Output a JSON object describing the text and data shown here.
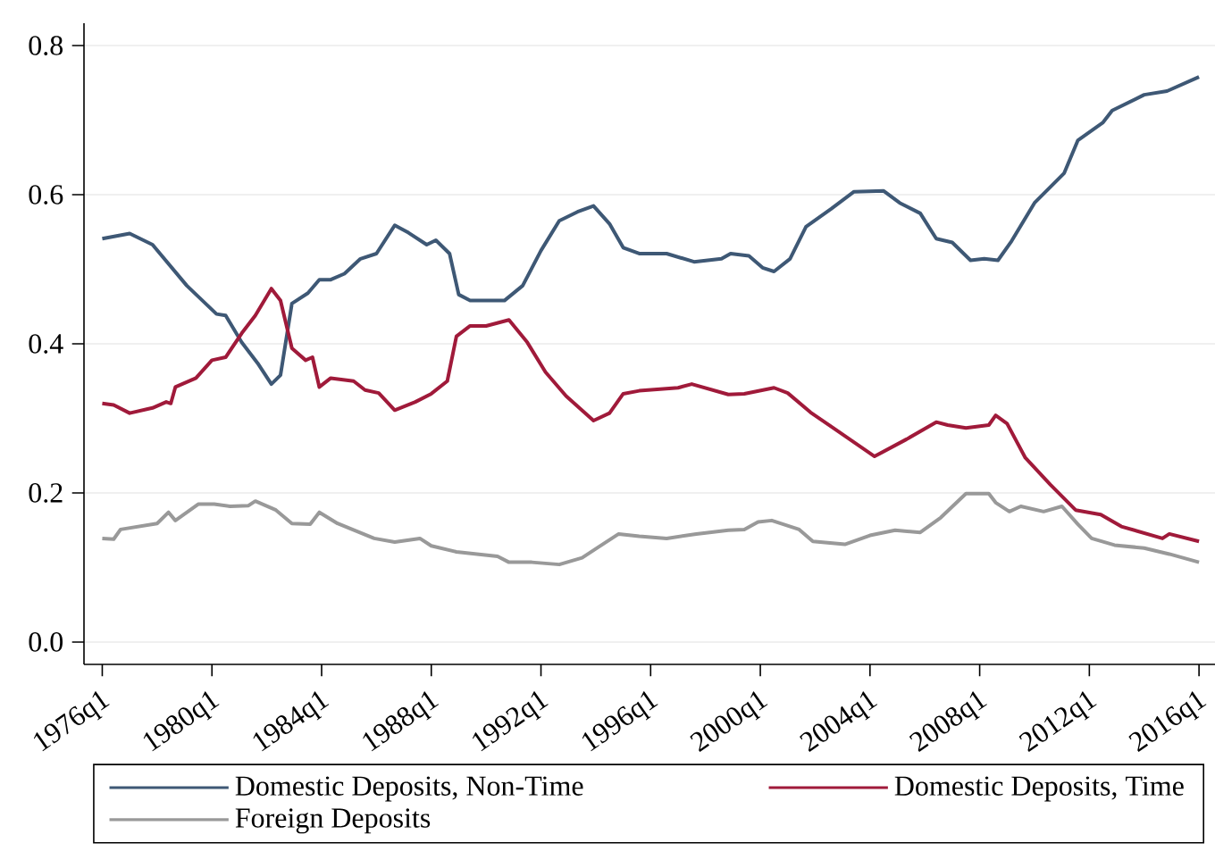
{
  "chart_data": {
    "type": "line",
    "xlim": [
      "1975-05",
      "2016-08"
    ],
    "ylim": [
      -0.03,
      0.83
    ],
    "xticks": [
      {
        "value": "1976-01",
        "label": "1976q1"
      },
      {
        "value": "1980-01",
        "label": "1980q1"
      },
      {
        "value": "1984-01",
        "label": "1984q1"
      },
      {
        "value": "1988-01",
        "label": "1988q1"
      },
      {
        "value": "1992-01",
        "label": "1992q1"
      },
      {
        "value": "1996-01",
        "label": "1996q1"
      },
      {
        "value": "2000-01",
        "label": "2000q1"
      },
      {
        "value": "2004-01",
        "label": "2004q1"
      },
      {
        "value": "2008-01",
        "label": "2008q1"
      },
      {
        "value": "2012-01",
        "label": "2012q1"
      },
      {
        "value": "2016-01",
        "label": "2016q1"
      }
    ],
    "yticks": [
      {
        "value": 0,
        "label": "0.0"
      },
      {
        "value": 0.2,
        "label": "0.2"
      },
      {
        "value": 0.4,
        "label": "0.4"
      },
      {
        "value": 0.6,
        "label": "0.6"
      },
      {
        "value": 0.8,
        "label": "0.8"
      }
    ],
    "grid": "y",
    "legend": "bottom",
    "marker": "none",
    "line_style": "solid",
    "series": [
      {
        "name": "Domestic Deposits, Non-Time",
        "color": "#3e5875",
        "x": [
          "1976-01",
          "1977-01",
          "1977-11",
          "1979-02",
          "1980-03",
          "1980-07",
          "1981-02",
          "1981-09",
          "1982-03",
          "1982-07",
          "1982-12",
          "1983-07",
          "1983-12",
          "1984-05",
          "1984-11",
          "1985-06",
          "1986-01",
          "1986-09",
          "1987-03",
          "1987-11",
          "1988-03",
          "1988-09",
          "1989-01",
          "1989-06",
          "1990-01",
          "1990-09",
          "1991-05",
          "1992-01",
          "1992-09",
          "1993-05",
          "1993-12",
          "1994-07",
          "1995-01",
          "1995-08",
          "1996-08",
          "1997-08",
          "1998-08",
          "1998-12",
          "1999-08",
          "2000-02",
          "2000-07",
          "2001-02",
          "2001-09",
          "2002-08",
          "2003-06",
          "2004-07",
          "2005-02",
          "2005-11",
          "2006-06",
          "2007-01",
          "2007-09",
          "2008-03",
          "2008-09",
          "2009-03",
          "2010-01",
          "2011-02",
          "2011-08",
          "2012-07",
          "2012-11",
          "2014-01",
          "2014-11",
          "2016-01"
        ],
        "values": [
          0.541,
          0.548,
          0.533,
          0.478,
          0.44,
          0.438,
          0.402,
          0.374,
          0.346,
          0.358,
          0.454,
          0.468,
          0.486,
          0.486,
          0.494,
          0.514,
          0.521,
          0.559,
          0.549,
          0.533,
          0.539,
          0.521,
          0.466,
          0.458,
          0.458,
          0.458,
          0.478,
          0.525,
          0.565,
          0.577,
          0.585,
          0.561,
          0.529,
          0.521,
          0.521,
          0.51,
          0.514,
          0.521,
          0.518,
          0.502,
          0.497,
          0.514,
          0.557,
          0.581,
          0.604,
          0.605,
          0.589,
          0.575,
          0.541,
          0.536,
          0.512,
          0.514,
          0.512,
          0.538,
          0.589,
          0.629,
          0.673,
          0.697,
          0.713,
          0.734,
          0.739,
          0.758
        ]
      },
      {
        "name": "Domestic Deposits, Time",
        "color": "#a01a3a",
        "x": [
          "1976-01",
          "1976-06",
          "1977-01",
          "1977-11",
          "1978-05",
          "1978-07",
          "1978-09",
          "1979-06",
          "1980-01",
          "1980-07",
          "1981-02",
          "1981-08",
          "1982-03",
          "1982-07",
          "1982-12",
          "1983-06",
          "1983-09",
          "1983-12",
          "1984-05",
          "1985-03",
          "1985-08",
          "1986-02",
          "1986-09",
          "1987-06",
          "1988-01",
          "1988-08",
          "1988-12",
          "1989-06",
          "1990-01",
          "1990-11",
          "1991-07",
          "1992-03",
          "1992-12",
          "1993-12",
          "1994-07",
          "1995-01",
          "1995-08",
          "1997-01",
          "1997-07",
          "1998-11",
          "1999-06",
          "2000-07",
          "2001-01",
          "2001-11",
          "2002-09",
          "2004-03",
          "2005-05",
          "2006-06",
          "2006-11",
          "2007-07",
          "2008-05",
          "2008-08",
          "2009-01",
          "2009-09",
          "2010-08",
          "2011-07",
          "2012-06",
          "2013-03",
          "2014-09",
          "2014-12",
          "2016-01"
        ],
        "values": [
          0.32,
          0.318,
          0.307,
          0.314,
          0.322,
          0.32,
          0.342,
          0.354,
          0.378,
          0.382,
          0.414,
          0.438,
          0.474,
          0.458,
          0.394,
          0.378,
          0.382,
          0.342,
          0.354,
          0.35,
          0.338,
          0.334,
          0.311,
          0.322,
          0.333,
          0.35,
          0.41,
          0.424,
          0.424,
          0.432,
          0.402,
          0.362,
          0.33,
          0.297,
          0.307,
          0.333,
          0.337,
          0.341,
          0.346,
          0.332,
          0.333,
          0.341,
          0.334,
          0.308,
          0.287,
          0.249,
          0.272,
          0.295,
          0.291,
          0.287,
          0.291,
          0.304,
          0.293,
          0.247,
          0.211,
          0.177,
          0.171,
          0.155,
          0.139,
          0.145,
          0.135
        ]
      },
      {
        "name": "Foreign Deposits",
        "color": "#999999",
        "x": [
          "1976-01",
          "1976-06",
          "1976-09",
          "1978-01",
          "1978-06",
          "1978-09",
          "1979-07",
          "1980-02",
          "1980-09",
          "1981-05",
          "1981-08",
          "1982-05",
          "1982-12",
          "1983-08",
          "1983-12",
          "1984-08",
          "1985-12",
          "1986-09",
          "1987-08",
          "1988-01",
          "1988-12",
          "1990-06",
          "1990-11",
          "1991-09",
          "1992-09",
          "1993-07",
          "1994-02",
          "1994-11",
          "1995-08",
          "1996-08",
          "1997-09",
          "1998-11",
          "1999-06",
          "1999-12",
          "2000-06",
          "2001-06",
          "2001-12",
          "2003-02",
          "2004-01",
          "2004-12",
          "2005-11",
          "2006-08",
          "2007-07",
          "2008-05",
          "2008-08",
          "2009-02",
          "2009-07",
          "2010-05",
          "2011-01",
          "2011-08",
          "2012-02",
          "2012-12",
          "2014-01",
          "2014-12",
          "2016-01"
        ],
        "values": [
          0.139,
          0.138,
          0.151,
          0.159,
          0.174,
          0.163,
          0.185,
          0.185,
          0.182,
          0.183,
          0.189,
          0.177,
          0.159,
          0.158,
          0.174,
          0.159,
          0.139,
          0.134,
          0.139,
          0.129,
          0.121,
          0.115,
          0.107,
          0.107,
          0.104,
          0.113,
          0.127,
          0.145,
          0.142,
          0.139,
          0.145,
          0.15,
          0.151,
          0.161,
          0.163,
          0.151,
          0.135,
          0.131,
          0.143,
          0.15,
          0.147,
          0.167,
          0.199,
          0.199,
          0.187,
          0.175,
          0.182,
          0.175,
          0.182,
          0.158,
          0.139,
          0.13,
          0.126,
          0.118,
          0.107
        ]
      }
    ]
  }
}
